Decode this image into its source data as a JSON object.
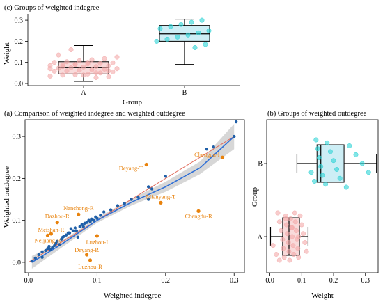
{
  "colors": {
    "group_a": "#f4aaaa",
    "group_b": "#2ed3d6",
    "box_a_fill": "#f8dada",
    "box_b_fill": "#cdeef5",
    "city_point": "#1f5fa8",
    "outlier_point": "#e8820c",
    "loess_line": "#2f6fd6",
    "identity_line": "#e06a5a",
    "confidence_band": "#c9c9c9"
  },
  "chart_data": [
    {
      "type": "box",
      "title": "(c) Groups of weighted indegree",
      "xlabel": "Group",
      "ylabel": "Weight",
      "orientation": "vertical",
      "ylim": [
        -0.01,
        0.33
      ],
      "ticks": [
        0.0,
        0.1,
        0.2,
        0.3
      ],
      "tick_labels": [
        "0.0",
        "0.1",
        "0.2",
        "0.3"
      ],
      "categories": [
        "A",
        "B"
      ],
      "boxes": [
        {
          "group": "A",
          "min": 0.01,
          "q1": 0.045,
          "median": 0.075,
          "q3": 0.103,
          "max": 0.18
        },
        {
          "group": "B",
          "min": 0.09,
          "q1": 0.2,
          "median": 0.235,
          "q3": 0.275,
          "max": 0.305
        }
      ],
      "points": {
        "A": [
          0.028,
          0.032,
          0.035,
          0.04,
          0.042,
          0.045,
          0.05,
          0.055,
          0.058,
          0.06,
          0.063,
          0.065,
          0.068,
          0.07,
          0.072,
          0.075,
          0.078,
          0.08,
          0.083,
          0.085,
          0.088,
          0.09,
          0.093,
          0.095,
          0.098,
          0.1,
          0.103,
          0.108,
          0.112,
          0.118,
          0.125,
          0.135,
          0.16,
          0.04,
          0.05,
          0.06,
          0.07,
          0.08,
          0.09,
          0.1
        ],
        "B": [
          0.17,
          0.185,
          0.2,
          0.21,
          0.22,
          0.23,
          0.24,
          0.25,
          0.26,
          0.27,
          0.28,
          0.29,
          0.3
        ]
      }
    },
    {
      "type": "scatter",
      "title": "(a) Comparison of weighted indegree and weighted outdegree",
      "xlabel": "Weighted indegree",
      "ylabel": "Weighted outdegree",
      "xlim": [
        -0.005,
        0.315
      ],
      "ylim": [
        -0.025,
        0.34
      ],
      "xticks": [
        0.0,
        0.1,
        0.2,
        0.3
      ],
      "xtick_labels": [
        "0.0",
        "0.1",
        "0.2",
        "0.3"
      ],
      "yticks": [
        0.0,
        0.1,
        0.2,
        0.3
      ],
      "ytick_labels": [
        "0.0",
        "0.1",
        "0.2",
        "0.3"
      ],
      "identity_line": [
        [
          0.0,
          0.0
        ],
        [
          0.3,
          0.3
        ]
      ],
      "loess_fit": [
        [
          0.005,
          0.0
        ],
        [
          0.05,
          0.045
        ],
        [
          0.1,
          0.1
        ],
        [
          0.15,
          0.143
        ],
        [
          0.2,
          0.18
        ],
        [
          0.25,
          0.225
        ],
        [
          0.3,
          0.3
        ]
      ],
      "confidence_band_halfwidth": [
        0.015,
        0.008,
        0.006,
        0.008,
        0.012,
        0.015,
        0.03
      ],
      "points": [
        [
          0.005,
          0.003
        ],
        [
          0.015,
          0.018
        ],
        [
          0.02,
          0.012
        ],
        [
          0.025,
          0.028
        ],
        [
          0.028,
          0.033
        ],
        [
          0.03,
          0.038
        ],
        [
          0.032,
          0.03
        ],
        [
          0.035,
          0.035
        ],
        [
          0.038,
          0.04
        ],
        [
          0.04,
          0.045
        ],
        [
          0.042,
          0.05
        ],
        [
          0.045,
          0.042
        ],
        [
          0.048,
          0.055
        ],
        [
          0.05,
          0.06
        ],
        [
          0.052,
          0.062
        ],
        [
          0.055,
          0.065
        ],
        [
          0.058,
          0.07
        ],
        [
          0.06,
          0.07
        ],
        [
          0.062,
          0.08
        ],
        [
          0.065,
          0.075
        ],
        [
          0.068,
          0.082
        ],
        [
          0.07,
          0.075
        ],
        [
          0.072,
          0.06
        ],
        [
          0.075,
          0.085
        ],
        [
          0.078,
          0.09
        ],
        [
          0.08,
          0.085
        ],
        [
          0.082,
          0.093
        ],
        [
          0.085,
          0.095
        ],
        [
          0.088,
          0.1
        ],
        [
          0.09,
          0.097
        ],
        [
          0.092,
          0.103
        ],
        [
          0.095,
          0.1
        ],
        [
          0.098,
          0.108
        ],
        [
          0.1,
          0.105
        ],
        [
          0.105,
          0.112
        ],
        [
          0.11,
          0.12
        ],
        [
          0.12,
          0.125
        ],
        [
          0.13,
          0.135
        ],
        [
          0.14,
          0.14
        ],
        [
          0.15,
          0.15
        ],
        [
          0.16,
          0.155
        ],
        [
          0.175,
          0.15
        ],
        [
          0.175,
          0.18
        ],
        [
          0.18,
          0.175
        ],
        [
          0.2,
          0.205
        ],
        [
          0.26,
          0.27
        ],
        [
          0.27,
          0.275
        ],
        [
          0.3,
          0.3
        ],
        [
          0.303,
          0.335
        ],
        [
          0.01,
          0.01
        ],
        [
          0.02,
          0.025
        ]
      ],
      "labeled_points": [
        {
          "label": "Chengdu-I",
          "x": 0.283,
          "y": 0.25
        },
        {
          "label": "Deyang-T",
          "x": 0.172,
          "y": 0.233
        },
        {
          "label": "Mianyang-T",
          "x": 0.193,
          "y": 0.142
        },
        {
          "label": "Chengdu-R",
          "x": 0.248,
          "y": 0.122
        },
        {
          "label": "Nanchong-R",
          "x": 0.073,
          "y": 0.114
        },
        {
          "label": "Dazhou-R",
          "x": 0.042,
          "y": 0.095
        },
        {
          "label": "Meishan-R",
          "x": 0.033,
          "y": 0.068
        },
        {
          "label": "Neijiang-R",
          "x": 0.028,
          "y": 0.064
        },
        {
          "label": "Luzhou-I",
          "x": 0.1,
          "y": 0.063
        },
        {
          "label": "Deyang-R",
          "x": 0.085,
          "y": 0.018
        },
        {
          "label": "Luzhou-R",
          "x": 0.09,
          "y": 0.005
        }
      ]
    },
    {
      "type": "box",
      "title": "(b) Groups of weighted outdegree",
      "xlabel": "Weight",
      "ylabel": "Group",
      "orientation": "horizontal",
      "xlim": [
        -0.01,
        0.34
      ],
      "ticks": [
        0.0,
        0.1,
        0.2,
        0.3
      ],
      "tick_labels": [
        "0.0",
        "0.1",
        "0.2",
        "0.3"
      ],
      "categories": [
        "A",
        "B"
      ],
      "boxes": [
        {
          "group": "A",
          "min": 0.002,
          "q1": 0.04,
          "median": 0.06,
          "q3": 0.093,
          "max": 0.12
        },
        {
          "group": "B",
          "min": 0.085,
          "q1": 0.148,
          "median": 0.16,
          "q3": 0.233,
          "max": 0.335
        }
      ],
      "points": {
        "A": [
          0.01,
          0.02,
          0.025,
          0.03,
          0.035,
          0.04,
          0.042,
          0.045,
          0.05,
          0.052,
          0.055,
          0.058,
          0.06,
          0.062,
          0.065,
          0.068,
          0.07,
          0.073,
          0.075,
          0.078,
          0.08,
          0.083,
          0.085,
          0.088,
          0.09,
          0.095,
          0.1,
          0.105,
          0.11,
          0.115,
          0.03,
          0.05,
          0.07,
          0.09
        ],
        "B": [
          0.13,
          0.14,
          0.145,
          0.15,
          0.155,
          0.16,
          0.165,
          0.175,
          0.18,
          0.19,
          0.2,
          0.21,
          0.22,
          0.24,
          0.25,
          0.27,
          0.29,
          0.31
        ]
      }
    }
  ]
}
